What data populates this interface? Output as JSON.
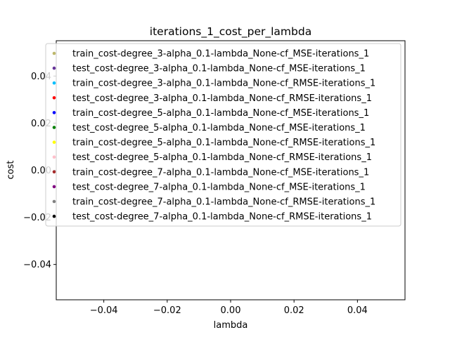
{
  "chart_data": {
    "type": "scatter",
    "title": "iterations_1_cost_per_lambda",
    "xlabel": "lambda",
    "ylabel": "cost",
    "xlim": [
      -0.055,
      0.055
    ],
    "ylim": [
      -0.055,
      0.055
    ],
    "xticks": [
      -0.04,
      -0.02,
      0.0,
      0.02,
      0.04
    ],
    "yticks": [
      -0.04,
      -0.02,
      0.0,
      0.02,
      0.04
    ],
    "xtick_labels": [
      "−0.04",
      "−0.02",
      "0.00",
      "0.02",
      "0.04"
    ],
    "ytick_labels": [
      "−0.04",
      "−0.02",
      "0.00",
      "0.02",
      "0.04"
    ],
    "grid": false,
    "legend_position": "top-center",
    "series": [
      {
        "name": "train_cost-degree_3-alpha_0.1-lambda_None-cf_MSE-iterations_1",
        "color": "#bdb76b",
        "x": [],
        "y": []
      },
      {
        "name": "test_cost-degree_3-alpha_0.1-lambda_None-cf_MSE-iterations_1",
        "color": "#663399",
        "x": [],
        "y": []
      },
      {
        "name": "train_cost-degree_3-alpha_0.1-lambda_None-cf_RMSE-iterations_1",
        "color": "#00bfff",
        "x": [],
        "y": []
      },
      {
        "name": "test_cost-degree_3-alpha_0.1-lambda_None-cf_RMSE-iterations_1",
        "color": "#ff0000",
        "x": [],
        "y": []
      },
      {
        "name": "train_cost-degree_5-alpha_0.1-lambda_None-cf_MSE-iterations_1",
        "color": "#0000ff",
        "x": [],
        "y": []
      },
      {
        "name": "test_cost-degree_5-alpha_0.1-lambda_None-cf_MSE-iterations_1",
        "color": "#008000",
        "x": [],
        "y": []
      },
      {
        "name": "train_cost-degree_5-alpha_0.1-lambda_None-cf_RMSE-iterations_1",
        "color": "#ffff00",
        "x": [],
        "y": []
      },
      {
        "name": "test_cost-degree_5-alpha_0.1-lambda_None-cf_RMSE-iterations_1",
        "color": "#ffc0cb",
        "x": [],
        "y": []
      },
      {
        "name": "train_cost-degree_7-alpha_0.1-lambda_None-cf_MSE-iterations_1",
        "color": "#a52a2a",
        "x": [],
        "y": []
      },
      {
        "name": "test_cost-degree_7-alpha_0.1-lambda_None-cf_MSE-iterations_1",
        "color": "#800080",
        "x": [],
        "y": []
      },
      {
        "name": "train_cost-degree_7-alpha_0.1-lambda_None-cf_RMSE-iterations_1",
        "color": "#808080",
        "x": [],
        "y": []
      },
      {
        "name": "test_cost-degree_7-alpha_0.1-lambda_None-cf_RMSE-iterations_1",
        "color": "#000000",
        "x": [],
        "y": []
      }
    ]
  }
}
